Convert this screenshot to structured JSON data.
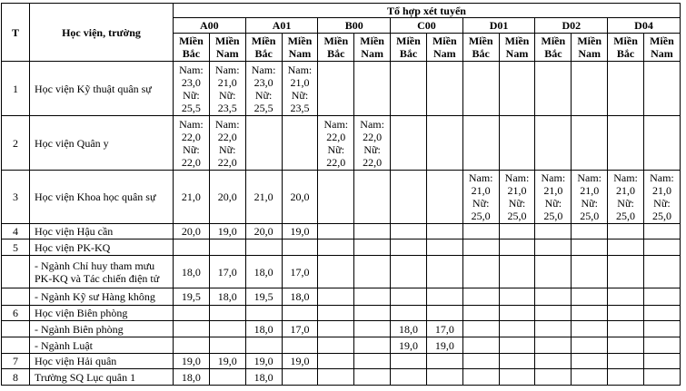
{
  "table": {
    "headers": {
      "t": "T",
      "name": "Học viện, trường",
      "group": "Tổ hợp xét tuyển"
    },
    "combos": [
      {
        "code": "A00",
        "regions": [
          "Miền Bắc",
          "Miền Nam"
        ]
      },
      {
        "code": "A01",
        "regions": [
          "Miền Bắc",
          "Miền Nam"
        ]
      },
      {
        "code": "B00",
        "regions": [
          "Miền Bắc",
          "Miền Nam"
        ]
      },
      {
        "code": "C00",
        "regions": [
          "Miền Bắc",
          "Miền Nam"
        ]
      },
      {
        "code": "D01",
        "regions": [
          "Miền Bắc",
          "Miền Nam"
        ]
      },
      {
        "code": "D02",
        "regions": [
          "Miền Bắc",
          "Miền Nam"
        ]
      },
      {
        "code": "D04",
        "regions": [
          "Miền Bắc",
          "Miền Nam"
        ]
      }
    ],
    "rows": [
      {
        "t": "1",
        "name": "Học viện Kỹ thuật quân sự",
        "cells": [
          "Nam: 23,0 Nữ: 25,5",
          "Nam: 21,0 Nữ: 23,5",
          "Nam: 23,0 Nữ: 25,5",
          "Nam: 21,0 Nữ: 23,5",
          null,
          null,
          null,
          null,
          null,
          null,
          null,
          null,
          null,
          null
        ]
      },
      {
        "t": "2",
        "name": "Học viện Quân y",
        "cells": [
          "Nam: 22,0 Nữ: 22,0",
          "Nam: 22,0 Nữ: 22,0",
          null,
          null,
          "Nam: 22,0 Nữ: 22,0",
          "Nam: 22,0 Nữ: 22,0",
          null,
          null,
          null,
          null,
          null,
          null,
          null,
          null
        ]
      },
      {
        "t": "3",
        "name": "Học viện Khoa học quân sự",
        "cells": [
          "21,0",
          "20,0",
          "21,0",
          "20,0",
          null,
          null,
          null,
          null,
          "Nam: 21,0 Nữ: 25,0",
          "Nam: 21,0 Nữ: 25,0",
          "Nam: 21,0 Nữ: 25,0",
          "Nam: 21,0 Nữ: 25,0",
          "Nam: 21,0 Nữ: 25,0",
          "Nam: 21,0 Nữ: 25,0"
        ]
      },
      {
        "t": "4",
        "name": "Học viện Hậu cần",
        "cells": [
          "20,0",
          "19,0",
          "20,0",
          "19,0",
          null,
          null,
          null,
          null,
          null,
          null,
          null,
          null,
          null,
          null
        ]
      },
      {
        "t": "5",
        "name": "Học viện PK-KQ",
        "cells": [
          null,
          null,
          null,
          null,
          null,
          null,
          null,
          null,
          null,
          null,
          null,
          null,
          null,
          null
        ]
      },
      {
        "t": null,
        "name": "- Ngành Chỉ huy tham mưu PK-KQ và Tác chiến điện tử",
        "cells": [
          "18,0",
          "17,0",
          "18,0",
          "17,0",
          null,
          null,
          null,
          null,
          null,
          null,
          null,
          null,
          null,
          null
        ]
      },
      {
        "t": null,
        "name": "-  Ngành Kỹ sư Hàng không",
        "cells": [
          "19,5",
          "18,0",
          "19,5",
          "18,0",
          null,
          null,
          null,
          null,
          null,
          null,
          null,
          null,
          null,
          null
        ]
      },
      {
        "t": "6",
        "name": "Học viện Biên phòng",
        "cells": [
          null,
          null,
          null,
          null,
          null,
          null,
          null,
          null,
          null,
          null,
          null,
          null,
          null,
          null
        ]
      },
      {
        "t": null,
        "name": "- Ngành Biên phòng",
        "cells": [
          null,
          null,
          "18,0",
          "17,0",
          null,
          null,
          "18,0",
          "17,0",
          null,
          null,
          null,
          null,
          null,
          null
        ]
      },
      {
        "t": null,
        "name": "- Ngành Luật",
        "cells": [
          null,
          null,
          null,
          null,
          null,
          null,
          "19,0",
          "19,0",
          null,
          null,
          null,
          null,
          null,
          null
        ]
      },
      {
        "t": "7",
        "name": "Học viện Hải quân",
        "cells": [
          "19,0",
          "19,0",
          "19,0",
          "19,0",
          null,
          null,
          null,
          null,
          null,
          null,
          null,
          null,
          null,
          null
        ]
      },
      {
        "t": "8",
        "name": "Trường SQ Lục quân 1",
        "cells": [
          "18,0",
          null,
          "18,0",
          null,
          null,
          null,
          null,
          null,
          null,
          null,
          null,
          null,
          null,
          null
        ]
      }
    ]
  }
}
